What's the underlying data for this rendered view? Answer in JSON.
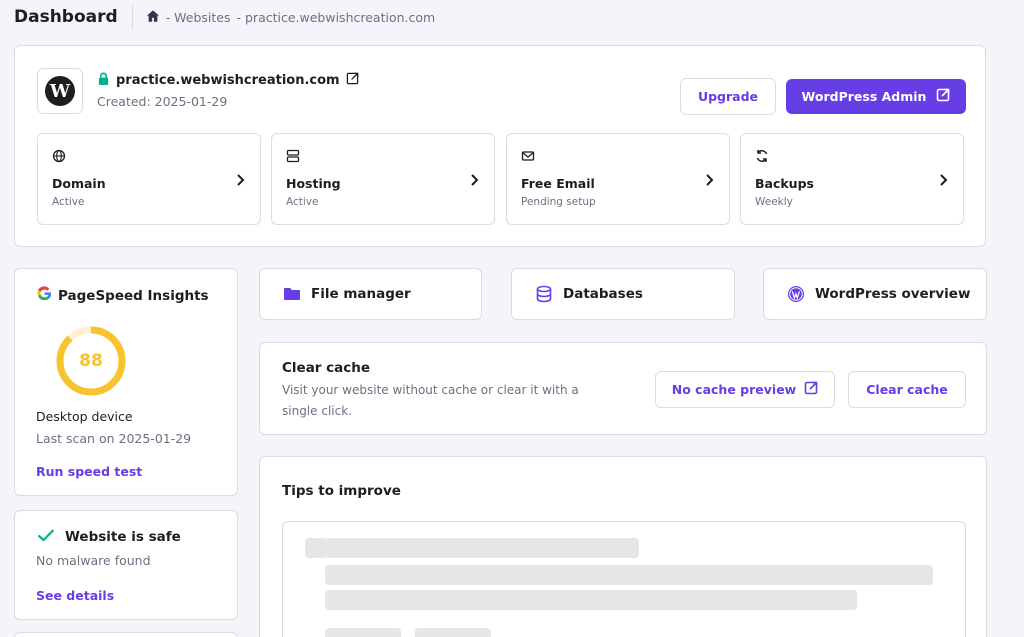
{
  "header": {
    "title": "Dashboard",
    "breadcrumb": [
      "- Websites",
      "- practice.webwishcreation.com"
    ]
  },
  "site": {
    "domain": "practice.webwishcreation.com",
    "created": "Created: 2025-01-29",
    "upgrade_label": "Upgrade",
    "wp_admin_label": "WordPress Admin"
  },
  "services": [
    {
      "name": "Domain",
      "status": "Active",
      "icon": "globe-icon"
    },
    {
      "name": "Hosting",
      "status": "Active",
      "icon": "server-icon"
    },
    {
      "name": "Free Email",
      "status": "Pending setup",
      "icon": "mail-icon"
    },
    {
      "name": "Backups",
      "status": "Weekly",
      "icon": "refresh-icon"
    }
  ],
  "pagespeed": {
    "title": "PageSpeed Insights",
    "score": "88",
    "score_fraction": 0.88,
    "device": "Desktop device",
    "last_scan": "Last scan on 2025-01-29",
    "run_label": "Run speed test"
  },
  "security": {
    "title": "Website is safe",
    "subtitle": "No malware found",
    "link": "See details"
  },
  "shortcuts": [
    {
      "label": "File manager",
      "icon": "folder-icon"
    },
    {
      "label": "Databases",
      "icon": "database-icon"
    },
    {
      "label": "WordPress overview",
      "icon": "wordpress-icon"
    }
  ],
  "cache": {
    "title": "Clear cache",
    "description": "Visit your website without cache or clear it with a single click.",
    "preview_label": "No cache preview",
    "clear_label": "Clear cache"
  },
  "tips": {
    "title": "Tips to improve"
  },
  "colors": {
    "accent": "#673de6",
    "score": "#f7c32e",
    "safe": "#00b090",
    "lock": "#00b090"
  }
}
